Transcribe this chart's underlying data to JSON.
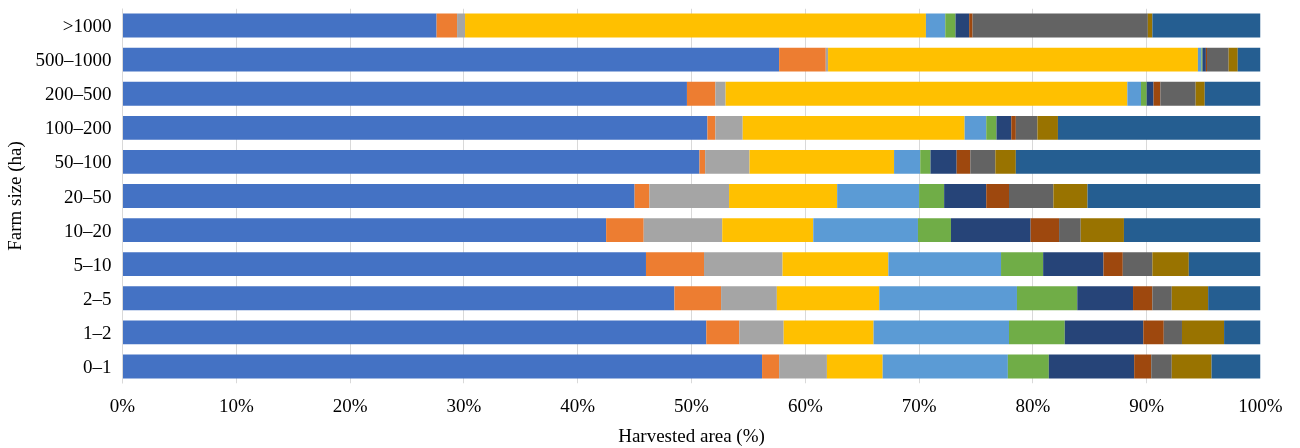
{
  "chart_data": {
    "type": "bar",
    "orientation": "horizontal",
    "stacked": true,
    "xlabel": "Harvested area (%)",
    "ylabel": "Farm size (ha)",
    "categories": [
      ">1000",
      "500–1000",
      "200–500",
      "100–200",
      "50–100",
      "20–50",
      "10–20",
      "5–10",
      "2–5",
      "1–2",
      "0–1"
    ],
    "series": [
      {
        "color": "#4472c4",
        "values": [
          27.6,
          57.7,
          49.6,
          51.4,
          50.7,
          45.0,
          42.5,
          46.0,
          48.5,
          51.3,
          56.2
        ]
      },
      {
        "color": "#ed7d31",
        "values": [
          1.8,
          4.1,
          2.5,
          0.7,
          0.5,
          1.3,
          3.3,
          5.1,
          4.1,
          2.9,
          1.5
        ]
      },
      {
        "color": "#a5a5a5",
        "values": [
          0.7,
          0.2,
          0.9,
          2.4,
          3.9,
          7.0,
          6.9,
          6.9,
          4.9,
          3.9,
          4.2
        ]
      },
      {
        "color": "#ffc000",
        "values": [
          40.5,
          32.5,
          35.3,
          19.5,
          12.7,
          9.5,
          8.0,
          9.3,
          9.0,
          7.9,
          4.9
        ]
      },
      {
        "color": "#5b9bd5",
        "values": [
          1.7,
          0.3,
          1.2,
          1.9,
          2.3,
          7.2,
          9.2,
          9.9,
          12.1,
          11.9,
          11.0
        ]
      },
      {
        "color": "#70ad47",
        "values": [
          0.9,
          0.1,
          0.5,
          0.9,
          0.9,
          2.2,
          2.9,
          3.7,
          5.3,
          4.9,
          3.6
        ]
      },
      {
        "color": "#264478",
        "values": [
          1.2,
          0.3,
          0.6,
          1.3,
          2.3,
          3.7,
          7.0,
          5.3,
          4.9,
          6.9,
          7.5
        ]
      },
      {
        "color": "#9e480e",
        "values": [
          0.3,
          0.1,
          0.6,
          0.4,
          1.2,
          2.0,
          2.5,
          1.7,
          1.7,
          1.8,
          1.5
        ]
      },
      {
        "color": "#636363",
        "values": [
          15.4,
          1.9,
          3.1,
          1.9,
          2.2,
          3.9,
          1.9,
          2.6,
          1.7,
          1.6,
          1.8
        ]
      },
      {
        "color": "#997300",
        "values": [
          0.4,
          0.8,
          0.8,
          1.8,
          1.8,
          3.0,
          3.8,
          3.2,
          3.2,
          3.7,
          3.5
        ]
      },
      {
        "color": "#255e91",
        "values": [
          9.5,
          2.0,
          4.9,
          17.8,
          21.5,
          15.2,
          12.0,
          6.3,
          4.6,
          3.2,
          4.3
        ]
      }
    ],
    "xlim": [
      0,
      100
    ],
    "xticks": [
      {
        "value": 0,
        "label": "0%"
      },
      {
        "value": 10,
        "label": "10%"
      },
      {
        "value": 20,
        "label": "20%"
      },
      {
        "value": 30,
        "label": "30%"
      },
      {
        "value": 40,
        "label": "40%"
      },
      {
        "value": 50,
        "label": "50%"
      },
      {
        "value": 60,
        "label": "60%"
      },
      {
        "value": 70,
        "label": "70%"
      },
      {
        "value": 80,
        "label": "80%"
      },
      {
        "value": 90,
        "label": "90%"
      },
      {
        "value": 100,
        "label": "100%"
      }
    ],
    "grid": "x"
  }
}
